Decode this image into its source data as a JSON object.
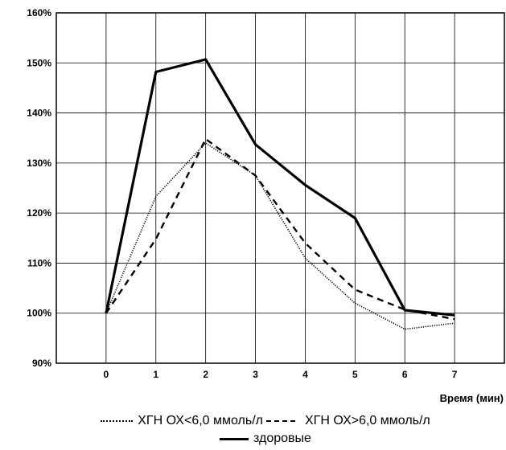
{
  "chart_data": {
    "type": "line",
    "xlabel": "Время (мин)",
    "ylabel": "",
    "x": [
      0,
      1,
      2,
      3,
      4,
      5,
      6,
      7
    ],
    "xlim": [
      -1,
      8
    ],
    "ylim": [
      90,
      160
    ],
    "y_ticks": [
      "90%",
      "100%",
      "110%",
      "120%",
      "130%",
      "140%",
      "150%",
      "160%"
    ],
    "x_ticks": [
      "0",
      "1",
      "2",
      "3",
      "4",
      "5",
      "6",
      "7"
    ],
    "grid": true,
    "legend_position": "bottom",
    "series": [
      {
        "name": "ХГН ОХ<6,0 ммоль/л",
        "style": "dotted",
        "color": "#000000",
        "values": [
          100,
          123.3,
          134,
          127.5,
          111,
          102,
          96.8,
          98
        ]
      },
      {
        "name": "ХГН ОХ>6,0 ммоль/л",
        "style": "dashed",
        "color": "#000000",
        "values": [
          100,
          114.8,
          134.8,
          127.5,
          114,
          104.7,
          100.7,
          98.8
        ]
      },
      {
        "name": "здоровые",
        "style": "solid",
        "color": "#000000",
        "values": [
          100,
          148.2,
          150.7,
          133.7,
          125.6,
          119,
          100.6,
          99.6
        ]
      }
    ]
  }
}
